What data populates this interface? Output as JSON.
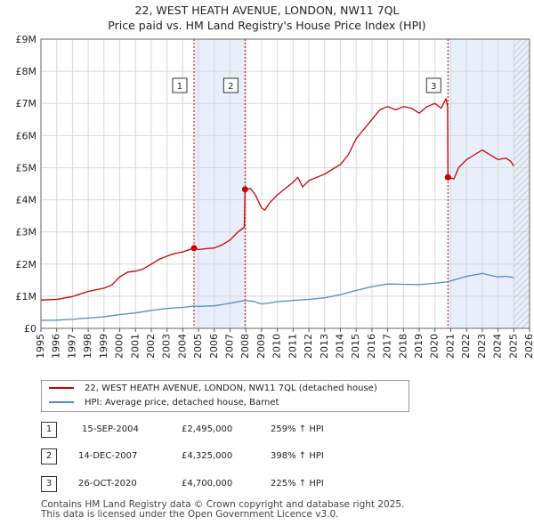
{
  "header": {
    "title_line1": "22, WEST HEATH AVENUE, LONDON, NW11 7QL",
    "title_line2": "Price paid vs. HM Land Registry's House Price Index (HPI)"
  },
  "colors": {
    "property": "#cc0000",
    "hpi": "#5588cc",
    "grid": "#d8d8d8",
    "shade": "#e8eefa",
    "sale_line": "#cc0000"
  },
  "legend": {
    "property_label": "22, WEST HEATH AVENUE, LONDON, NW11 7QL (detached house)",
    "hpi_label": "HPI: Average price, detached house, Barnet"
  },
  "sales": [
    {
      "num": "1",
      "date": "15-SEP-2004",
      "price": "£2,495,000",
      "hpi": "259% ↑ HPI"
    },
    {
      "num": "2",
      "date": "14-DEC-2007",
      "price": "£4,325,000",
      "hpi": "398% ↑ HPI"
    },
    {
      "num": "3",
      "date": "26-OCT-2020",
      "price": "£4,700,000",
      "hpi": "225% ↑ HPI"
    }
  ],
  "footer": {
    "line1": "Contains HM Land Registry data © Crown copyright and database right 2025.",
    "line2": "This data is licensed under the Open Government Licence v3.0."
  },
  "chart_data": {
    "type": "line",
    "title": "22, WEST HEATH AVENUE, LONDON, NW11 7QL — Price paid vs. HM Land Registry's House Price Index (HPI)",
    "xlim": [
      1995,
      2026
    ],
    "ylim": [
      0,
      9000000
    ],
    "x_ticks": [
      "1995",
      "1996",
      "1997",
      "1998",
      "1999",
      "2000",
      "2001",
      "2002",
      "2003",
      "2004",
      "2005",
      "2006",
      "2007",
      "2008",
      "2009",
      "2010",
      "2011",
      "2012",
      "2013",
      "2014",
      "2015",
      "2016",
      "2017",
      "2018",
      "2019",
      "2020",
      "2021",
      "2022",
      "2023",
      "2024",
      "2025",
      "2026"
    ],
    "y_ticks": [
      {
        "value": 0,
        "label": "£0"
      },
      {
        "value": 1000000,
        "label": "£1M"
      },
      {
        "value": 2000000,
        "label": "£2M"
      },
      {
        "value": 3000000,
        "label": "£3M"
      },
      {
        "value": 4000000,
        "label": "£4M"
      },
      {
        "value": 5000000,
        "label": "£5M"
      },
      {
        "value": 6000000,
        "label": "£6M"
      },
      {
        "value": 7000000,
        "label": "£7M"
      },
      {
        "value": 8000000,
        "label": "£8M"
      },
      {
        "value": 9000000,
        "label": "£9M"
      }
    ],
    "shaded_ranges": [
      [
        2004.71,
        2007.95
      ],
      [
        2020.82,
        2026
      ]
    ],
    "hatched_from": 2025.0,
    "sale_markers": [
      {
        "label": "1",
        "x": 2004.71,
        "y": 2495000
      },
      {
        "label": "2",
        "x": 2007.95,
        "y": 4325000
      },
      {
        "label": "3",
        "x": 2020.82,
        "y": 4700000
      }
    ],
    "series": [
      {
        "name": "22, WEST HEATH AVENUE, LONDON, NW11 7QL (detached house)",
        "color": "#cc0000",
        "points": [
          [
            1995.0,
            880000
          ],
          [
            1996.0,
            900000
          ],
          [
            1997.0,
            990000
          ],
          [
            1998.0,
            1150000
          ],
          [
            1999.0,
            1250000
          ],
          [
            1999.5,
            1350000
          ],
          [
            2000.0,
            1600000
          ],
          [
            2000.5,
            1750000
          ],
          [
            2001.0,
            1780000
          ],
          [
            2001.5,
            1850000
          ],
          [
            2002.0,
            2000000
          ],
          [
            2002.5,
            2150000
          ],
          [
            2003.0,
            2250000
          ],
          [
            2003.5,
            2330000
          ],
          [
            2004.0,
            2380000
          ],
          [
            2004.71,
            2495000
          ],
          [
            2005.0,
            2450000
          ],
          [
            2005.5,
            2480000
          ],
          [
            2006.0,
            2500000
          ],
          [
            2006.5,
            2600000
          ],
          [
            2007.0,
            2750000
          ],
          [
            2007.5,
            3000000
          ],
          [
            2007.9,
            3150000
          ],
          [
            2007.95,
            4325000
          ],
          [
            2008.3,
            4350000
          ],
          [
            2008.6,
            4150000
          ],
          [
            2009.0,
            3750000
          ],
          [
            2009.2,
            3680000
          ],
          [
            2009.5,
            3900000
          ],
          [
            2010.0,
            4150000
          ],
          [
            2010.5,
            4350000
          ],
          [
            2011.0,
            4550000
          ],
          [
            2011.3,
            4700000
          ],
          [
            2011.6,
            4400000
          ],
          [
            2012.0,
            4600000
          ],
          [
            2012.5,
            4700000
          ],
          [
            2013.0,
            4800000
          ],
          [
            2013.5,
            4950000
          ],
          [
            2014.0,
            5100000
          ],
          [
            2014.5,
            5400000
          ],
          [
            2015.0,
            5900000
          ],
          [
            2015.5,
            6200000
          ],
          [
            2016.0,
            6500000
          ],
          [
            2016.5,
            6800000
          ],
          [
            2017.0,
            6900000
          ],
          [
            2017.5,
            6800000
          ],
          [
            2018.0,
            6900000
          ],
          [
            2018.5,
            6850000
          ],
          [
            2019.0,
            6700000
          ],
          [
            2019.5,
            6900000
          ],
          [
            2020.0,
            7000000
          ],
          [
            2020.4,
            6850000
          ],
          [
            2020.7,
            7150000
          ],
          [
            2020.8,
            6900000
          ],
          [
            2020.82,
            4700000
          ],
          [
            2021.2,
            4650000
          ],
          [
            2021.5,
            5000000
          ],
          [
            2022.0,
            5250000
          ],
          [
            2022.5,
            5400000
          ],
          [
            2023.0,
            5550000
          ],
          [
            2023.5,
            5400000
          ],
          [
            2024.0,
            5250000
          ],
          [
            2024.5,
            5300000
          ],
          [
            2024.8,
            5200000
          ],
          [
            2025.0,
            5050000
          ]
        ]
      },
      {
        "name": "HPI: Average price, detached house, Barnet",
        "color": "#5588cc",
        "points": [
          [
            1995.0,
            250000
          ],
          [
            1996.0,
            255000
          ],
          [
            1997.0,
            280000
          ],
          [
            1998.0,
            320000
          ],
          [
            1999.0,
            360000
          ],
          [
            2000.0,
            430000
          ],
          [
            2001.0,
            480000
          ],
          [
            2002.0,
            560000
          ],
          [
            2003.0,
            620000
          ],
          [
            2004.0,
            650000
          ],
          [
            2004.71,
            695000
          ],
          [
            2005.0,
            680000
          ],
          [
            2006.0,
            700000
          ],
          [
            2007.0,
            780000
          ],
          [
            2007.95,
            870000
          ],
          [
            2008.5,
            840000
          ],
          [
            2009.0,
            760000
          ],
          [
            2009.5,
            790000
          ],
          [
            2010.0,
            830000
          ],
          [
            2011.0,
            870000
          ],
          [
            2012.0,
            900000
          ],
          [
            2013.0,
            950000
          ],
          [
            2014.0,
            1050000
          ],
          [
            2015.0,
            1180000
          ],
          [
            2016.0,
            1300000
          ],
          [
            2017.0,
            1380000
          ],
          [
            2018.0,
            1370000
          ],
          [
            2019.0,
            1360000
          ],
          [
            2020.0,
            1400000
          ],
          [
            2020.82,
            1450000
          ],
          [
            2021.0,
            1480000
          ],
          [
            2022.0,
            1620000
          ],
          [
            2023.0,
            1710000
          ],
          [
            2023.5,
            1650000
          ],
          [
            2024.0,
            1600000
          ],
          [
            2024.5,
            1620000
          ],
          [
            2025.0,
            1580000
          ]
        ]
      }
    ]
  }
}
